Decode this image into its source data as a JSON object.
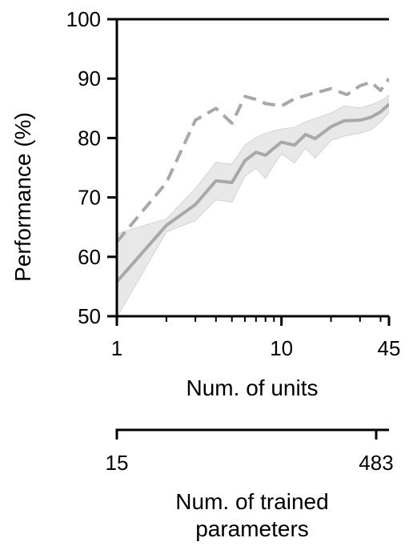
{
  "chart_data": {
    "type": "line",
    "xscale": "log",
    "xlim": [
      1,
      45
    ],
    "ylim": [
      50,
      100
    ],
    "xlabel": "Num. of units",
    "ylabel": "Performance (%)",
    "yticks": [
      50,
      60,
      70,
      80,
      90,
      100
    ],
    "xticks": [
      {
        "value": 1,
        "label": "1"
      },
      {
        "value": 10,
        "label": "10"
      },
      {
        "value": 45,
        "label": "45"
      }
    ],
    "x_minor_ticks": [
      2,
      3,
      4,
      5,
      6,
      7,
      8,
      9,
      20,
      30,
      40
    ],
    "secondary_xaxis": {
      "label_lines": [
        "Num. of trained",
        "parameters"
      ],
      "ticks": [
        {
          "value": 1,
          "label": "15"
        },
        {
          "value": 45,
          "label": "483"
        }
      ]
    },
    "series": [
      {
        "style": "dashed",
        "color": "#a8a8a8",
        "x": [
          1,
          2,
          3,
          4,
          5,
          6,
          7,
          8,
          9,
          10,
          12,
          15,
          20,
          25,
          30,
          35,
          40,
          45
        ],
        "y": [
          62.5,
          72.5,
          83,
          85,
          82.5,
          87,
          86.5,
          85.8,
          85.6,
          85.4,
          86.6,
          87.4,
          88.3,
          87.3,
          88.8,
          89.4,
          88,
          90
        ]
      },
      {
        "style": "solid",
        "color": "#a8a8a8",
        "x": [
          1,
          2,
          3,
          4,
          5,
          6,
          7,
          8,
          9,
          10,
          12,
          14,
          16,
          20,
          24,
          30,
          35,
          40,
          45
        ],
        "y": [
          55.8,
          65.3,
          68.8,
          72.8,
          72.5,
          76.2,
          77.6,
          77.1,
          78.3,
          79.3,
          78.8,
          80.6,
          79.9,
          81.9,
          82.9,
          83,
          83.5,
          84.4,
          85.7
        ],
        "band_lower": [
          49.8,
          64.2,
          66.1,
          69.6,
          69.2,
          73.6,
          74.9,
          73.2,
          75.5,
          77.3,
          75.8,
          78.3,
          76.6,
          79.6,
          80.3,
          80.8,
          81.4,
          82.7,
          84.3
        ],
        "band_upper": [
          63.9,
          66.4,
          71.5,
          75.9,
          75.6,
          78.8,
          80.1,
          80.8,
          81.2,
          81.5,
          81.8,
          82.7,
          83.3,
          84.2,
          85.4,
          85.1,
          85.6,
          86.2,
          87.2
        ]
      }
    ]
  }
}
